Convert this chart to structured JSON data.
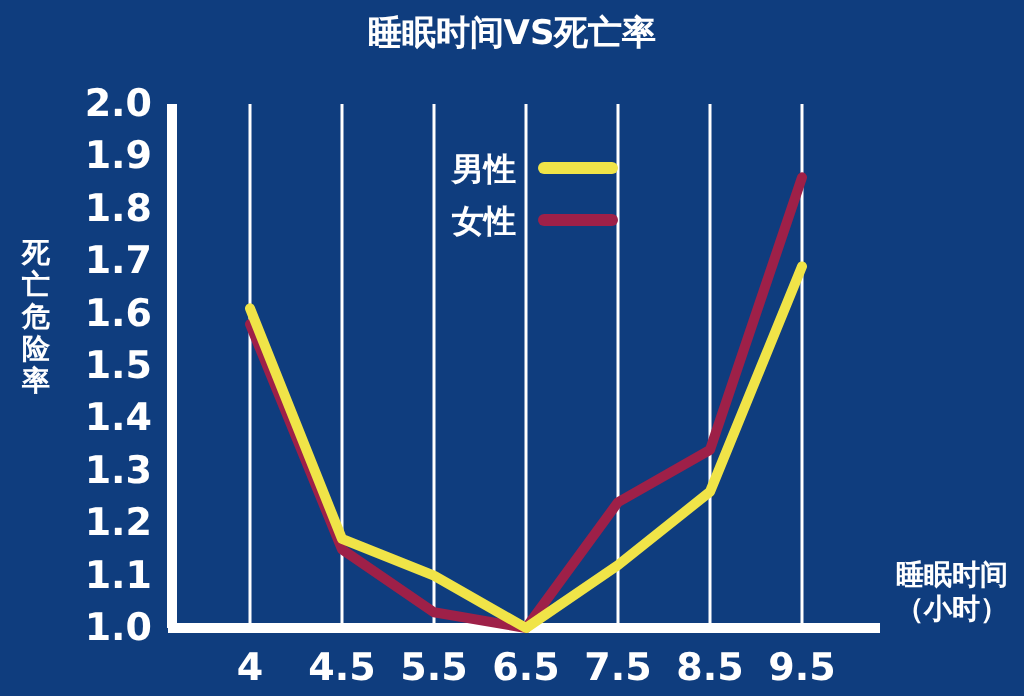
{
  "chart_data": {
    "type": "line",
    "title": "睡眠时间VS死亡率",
    "xlabel": "睡眠时间（小时）",
    "ylabel": "死亡危险率",
    "categories": [
      "4",
      "4.5",
      "5.5",
      "6.5",
      "7.5",
      "8.5",
      "9.5"
    ],
    "series": [
      {
        "name": "男性",
        "color": "#f0e448",
        "values": [
          1.61,
          1.17,
          1.1,
          1.0,
          1.12,
          1.26,
          1.69
        ]
      },
      {
        "name": "女性",
        "color": "#9e2048",
        "values": [
          1.58,
          1.15,
          1.03,
          1.0,
          1.24,
          1.34,
          1.86
        ]
      }
    ],
    "ylim": [
      1.0,
      2.0
    ],
    "yticks": [
      {
        "value": 1.0,
        "label": "1.0"
      },
      {
        "value": 1.1,
        "label": "1.1"
      },
      {
        "value": 1.2,
        "label": "1.2"
      },
      {
        "value": 1.3,
        "label": "1.3"
      },
      {
        "value": 1.4,
        "label": "1.4"
      },
      {
        "value": 1.5,
        "label": "1.5"
      },
      {
        "value": 1.6,
        "label": "1.6"
      },
      {
        "value": 1.7,
        "label": "1.7"
      },
      {
        "value": 1.8,
        "label": "1.8"
      },
      {
        "value": 1.9,
        "label": "1.9"
      },
      {
        "value": 2.0,
        "label": "2.0"
      }
    ],
    "grid": "x",
    "legend": "top",
    "marker": "none",
    "line_style": "solid"
  }
}
